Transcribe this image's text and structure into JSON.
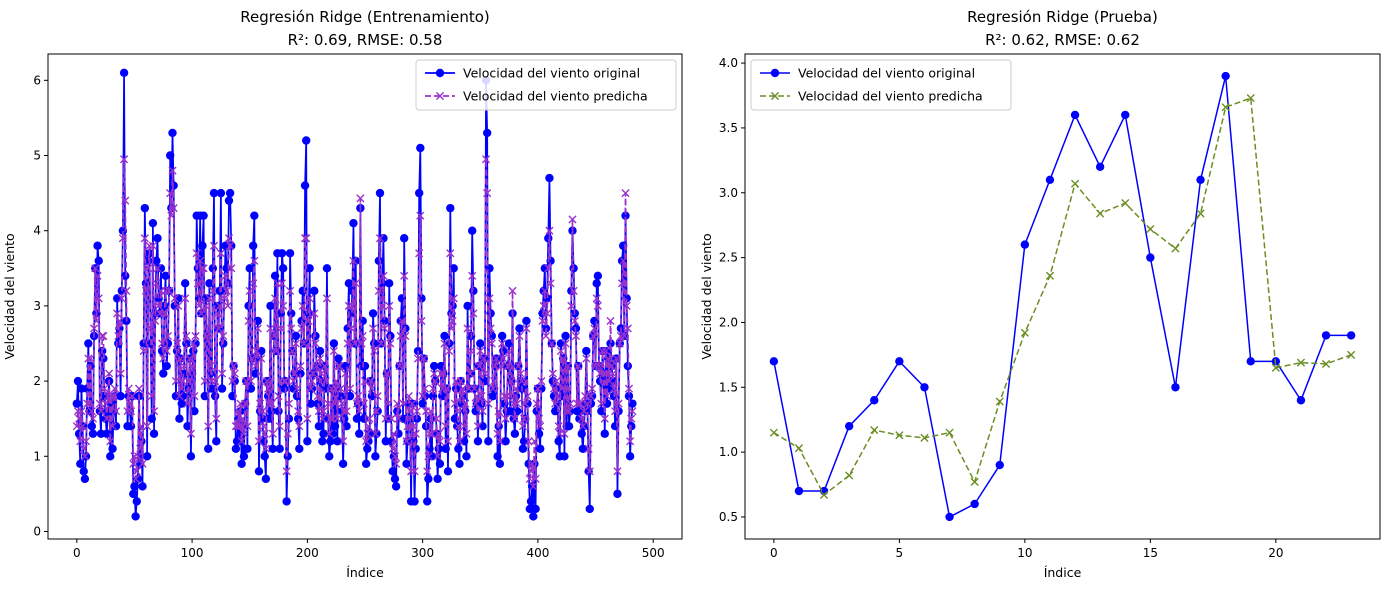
{
  "chart_data": [
    {
      "type": "line",
      "title": "Regresión Ridge (Entrenamiento)",
      "subtitle": "R²: 0.69, RMSE: 0.58",
      "xlabel": "Índice",
      "ylabel": "Velocidad del viento",
      "xlim": [
        -25,
        525
      ],
      "ylim": [
        -0.1,
        6.35
      ],
      "xticks": [
        0,
        100,
        200,
        300,
        400,
        500
      ],
      "yticks": [
        0,
        1,
        2,
        3,
        4,
        5,
        6
      ],
      "grid": false,
      "legend_position": "upper right",
      "series": [
        {
          "name": "Velocidad del viento original",
          "color": "#0000ff",
          "linestyle": "solid",
          "marker": "circle",
          "x_start": 0,
          "values": [
            1.7,
            2.0,
            1.3,
            0.9,
            1.9,
            1.4,
            0.8,
            0.7,
            1.0,
            1.9,
            2.5,
            1.6,
            2.2,
            1.4,
            1.3,
            2.6,
            3.5,
            2.9,
            3.8,
            3.6,
            1.6,
            1.3,
            2.4,
            2.3,
            1.8,
            1.5,
            1.3,
            1.6,
            2.0,
            1.0,
            1.7,
            1.1,
            1.6,
            1.8,
            1.4,
            3.1,
            2.5,
            2.7,
            1.8,
            3.2,
            4.0,
            6.1,
            3.4,
            2.8,
            1.4,
            1.8,
            1.6,
            1.4,
            1.8,
            0.5,
            0.6,
            0.2,
            0.4,
            0.7,
            1.8,
            0.9,
            1.2,
            0.6,
            2.5,
            4.3,
            3.3,
            1.0,
            3.6,
            3.7,
            2.5,
            1.5,
            4.1,
            1.3,
            2.9,
            3.6,
            3.9,
            3.1,
            2.9,
            3.5,
            2.4,
            2.1,
            3.0,
            3.4,
            2.2,
            2.5,
            3.2,
            5.0,
            4.3,
            5.3,
            4.6,
            3.0,
            1.8,
            2.4,
            3.1,
            1.5,
            2.3,
            1.7,
            1.8,
            2.1,
            3.3,
            2.5,
            1.4,
            1.9,
            2.3,
            1.0,
            2.1,
            2.4,
            1.6,
            2.5,
            4.2,
            3.5,
            3.1,
            4.2,
            2.9,
            3.8,
            4.2,
            1.8,
            3.1,
            2.6,
            1.1,
            3.3,
            2.1,
            1.9,
            3.5,
            4.5,
            1.8,
            1.2,
            3.0,
            2.7,
            3.2,
            4.5,
            1.9,
            2.5,
            3.2,
            3.8,
            3.5,
            3.3,
            4.4,
            4.5,
            3.8,
            1.8,
            2.2,
            2.0,
            1.1,
            1.2,
            1.5,
            1.2,
            1.6,
            0.9,
            1.4,
            1.0,
            1.7,
            2.0,
            1.1,
            3.0,
            3.5,
            1.9,
            2.3,
            3.8,
            4.2,
            2.1,
            2.3,
            2.8,
            0.8,
            1.6,
            2.4,
            1.5,
            1.2,
            1.0,
            0.7,
            2.0,
            1.8,
            1.5,
            3.0,
            1.6,
            1.1,
            2.6,
            3.4,
            2.4,
            3.7,
            1.6,
            1.1,
            2.9,
            3.7,
            3.5,
            1.9,
            2.0,
            0.4,
            1.0,
            1.5,
            3.7,
            2.9,
            2.4,
            1.9,
            2.1,
            2.6,
            1.8,
            1.5,
            1.1,
            2.1,
            2.8,
            3.2,
            2.5,
            4.6,
            5.2,
            1.2,
            2.9,
            3.5,
            1.7,
            1.9,
            2.1,
            3.2,
            2.6,
            2.2,
            1.7,
            1.4,
            2.4,
            2.0,
            1.2,
            1.3,
            2.2,
            1.9,
            3.5,
            1.5,
            1.0,
            1.2,
            1.9,
            1.3,
            2.5,
            1.4,
            1.9,
            1.2,
            2.3,
            2.2,
            1.8,
            1.6,
            0.9,
            1.5,
            2.2,
            1.4,
            2.7,
            3.3,
            1.8,
            2.9,
            3.2,
            4.1,
            2.5,
            3.6,
            1.5,
            1.7,
            1.3,
            4.3,
            2.2,
            2.8,
            1.5,
            2.2,
            0.9,
            1.1,
            1.2,
            1.3,
            2.0,
            1.8,
            2.9,
            2.5,
            1.0,
            1.3,
            1.6,
            3.6,
            4.5,
            2.5,
            3.3,
            3.9,
            2.8,
            1.2,
            2.1,
            1.5,
            3.3,
            2.6,
            1.2,
            0.8,
            1.0,
            0.7,
            0.6,
            1.6,
            1.3,
            2.2,
            2.8,
            3.1,
            1.5,
            3.9,
            2.7,
            0.9,
            1.2,
            1.7,
            1.5,
            0.4,
            1.7,
            1.2,
            0.4,
            1.1,
            1.5,
            2.4,
            4.5,
            5.1,
            3.1,
            1.7,
            2.3,
            1.8,
            1.4,
            0.4,
            0.7,
            1.1,
            1.5,
            1.0,
            1.8,
            2.2,
            2.0,
            1.3,
            0.7,
            1.1,
            0.9,
            2.2,
            1.8,
            2.1,
            2.6,
            1.1,
            1.9,
            0.8,
            2.5,
            4.3,
            2.9,
            3.0,
            3.5,
            1.5,
            1.9,
            1.4,
            1.1,
            0.9,
            2.0,
            1.7,
            1.8,
            1.2,
            1.6,
            1.0,
            3.0,
            1.9,
            2.1,
            2.6,
            4.0,
            3.2,
            1.9,
            1.6,
            1.7,
            1.2,
            2.2,
            2.5,
            1.7,
            1.4,
            2.3,
            2.0,
            6.0,
            5.3,
            1.2,
            3.5,
            2.9,
            2.6,
            1.8,
            1.9,
            2.2,
            2.3,
            1.0,
            1.4,
            0.9,
            2.3,
            2.6,
            2.4,
            1.7,
            1.2,
            1.6,
            2.2,
            2.5,
            1.6,
            2.0,
            2.9,
            1.5,
            1.3,
            1.8,
            1.6,
            2.2,
            2.7,
            2.0,
            1.9,
            1.1,
            1.2,
            1.5,
            2.8,
            1.7,
            0.9,
            0.3,
            0.4,
            0.6,
            0.2,
            0.9,
            0.3,
            1.6,
            1.9,
            1.3,
            1.1,
            1.9,
            2.9,
            3.2,
            3.5,
            2.7,
            3.1,
            3.9,
            4.7,
            3.6,
            2.5,
            2.0,
            1.8,
            1.6,
            1.9,
            1.7,
            1.2,
            1.0,
            2.5,
            1.8,
            2.3,
            1.0,
            2.6,
            1.4,
            2.2,
            1.4,
            1.6,
            3.2,
            4.0,
            3.5,
            2.9,
            2.7,
            1.6,
            2.2,
            1.5,
            1.6,
            1.3,
            1.1,
            1.4,
            1.7,
            2.4,
            1.6,
            0.8,
            0.3,
            1.7,
            1.8,
            2.6,
            2.8,
            2.2,
            3.3,
            3.4,
            2.2,
            2.0,
            1.6,
            2.4,
            2.1,
            1.3,
            2.4,
            1.7,
            2.3,
            1.9,
            2.5,
            2.2,
            2.0,
            1.8,
            1.4,
            2.3,
            0.5,
            1.6,
            2.5,
            2.7,
            3.6,
            3.8,
            2.6,
            4.2,
            3.1,
            2.2,
            1.8,
            1.0,
            1.4,
            1.7
          ]
        },
        {
          "name": "Velocidad del viento predicha",
          "color": "#9932cc",
          "linestyle": "dashed",
          "marker": "x",
          "x_start": 0,
          "values": [
            1.4,
            1.6,
            1.5,
            1.2,
            1.6,
            1.4,
            1.1,
            1.0,
            1.2,
            1.7,
            2.3,
            1.7,
            2.3,
            1.6,
            1.5,
            2.7,
            3.5,
            2.8,
            3.4,
            3.1,
            1.7,
            1.6,
            2.6,
            2.6,
            1.9,
            1.7,
            1.5,
            1.8,
            2.1,
            1.2,
            1.8,
            1.4,
            1.8,
            1.9,
            1.6,
            2.9,
            2.6,
            2.8,
            2.1,
            3.1,
            3.9,
            4.95,
            4.4,
            3.2,
            1.6,
            1.9,
            1.7,
            1.6,
            1.8,
            0.9,
            1.0,
            0.7,
            0.8,
            1.0,
            1.9,
            1.1,
            1.4,
            0.9,
            2.4,
            3.9,
            3.2,
            1.4,
            3.5,
            3.8,
            2.7,
            1.8,
            3.8,
            1.6,
            2.8,
            3.3,
            3.5,
            3.0,
            2.9,
            3.2,
            2.5,
            2.3,
            2.9,
            3.2,
            2.4,
            2.6,
            3.2,
            4.5,
            4.2,
            4.8,
            4.3,
            3.1,
            2.0,
            2.5,
            3.0,
            1.8,
            2.3,
            1.9,
            2.0,
            2.2,
            3.1,
            2.6,
            1.7,
            2.0,
            2.3,
            1.3,
            2.2,
            2.5,
            1.8,
            2.6,
            3.7,
            3.3,
            3.0,
            3.6,
            2.9,
            3.5,
            3.5,
            2.0,
            3.0,
            2.6,
            1.4,
            3.1,
            2.2,
            2.0,
            3.2,
            3.8,
            2.0,
            1.5,
            2.9,
            2.7,
            3.0,
            3.7,
            2.1,
            2.6,
            3.1,
            3.4,
            3.2,
            3.0,
            3.9,
            3.8,
            3.5,
            2.0,
            2.2,
            2.1,
            1.4,
            1.4,
            1.6,
            1.4,
            1.7,
            1.2,
            1.5,
            1.3,
            1.7,
            2.0,
            1.4,
            2.8,
            3.2,
            2.0,
            2.3,
            3.3,
            3.6,
            2.2,
            2.4,
            2.7,
            1.2,
            1.7,
            2.3,
            1.6,
            1.4,
            1.3,
            1.1,
            2.0,
            1.9,
            1.7,
            2.7,
            1.7,
            1.3,
            2.6,
            3.1,
            2.4,
            3.3,
            1.8,
            1.4,
            2.7,
            3.3,
            3.0,
            2.0,
            2.0,
            0.8,
            1.3,
            1.7,
            3.2,
            2.7,
            2.4,
            2.0,
            2.1,
            2.5,
            1.9,
            1.6,
            1.4,
            2.2,
            2.7,
            3.0,
            2.5,
            3.9,
            3.9,
            1.5,
            2.8,
            3.1,
            1.9,
            2.0,
            2.1,
            2.9,
            2.5,
            2.2,
            1.8,
            1.6,
            2.3,
            2.1,
            1.5,
            1.6,
            2.2,
            2.0,
            3.1,
            1.7,
            1.3,
            1.5,
            1.9,
            1.5,
            2.4,
            1.7,
            2.0,
            1.5,
            2.2,
            2.2,
            1.9,
            1.7,
            1.2,
            1.6,
            2.1,
            1.6,
            2.5,
            3.0,
            1.9,
            2.7,
            3.0,
            3.6,
            2.5,
            3.3,
            1.7,
            1.8,
            1.6,
            4.43,
            2.5,
            2.6,
            1.7,
            2.0,
            1.2,
            1.3,
            1.4,
            1.5,
            2.0,
            1.9,
            2.7,
            2.4,
            1.3,
            1.6,
            1.8,
            3.2,
            3.9,
            2.5,
            3.0,
            3.4,
            2.7,
            1.5,
            2.1,
            1.7,
            3.0,
            2.5,
            1.5,
            1.1,
            1.3,
            1.0,
            0.9,
            1.7,
            1.5,
            2.2,
            2.6,
            2.8,
            1.7,
            3.4,
            2.6,
            1.2,
            1.4,
            1.8,
            1.6,
            0.8,
            1.7,
            1.4,
            0.8,
            1.3,
            1.6,
            2.3,
            3.7,
            4.2,
            2.8,
            1.8,
            2.3,
            1.9,
            1.6,
            0.8,
            1.0,
            1.3,
            1.6,
            1.3,
            1.9,
            2.1,
            2.0,
            1.5,
            1.0,
            1.3,
            1.2,
            2.1,
            1.9,
            2.1,
            2.5,
            1.4,
            1.9,
            1.2,
            2.4,
            3.7,
            2.7,
            2.8,
            3.1,
            1.7,
            2.0,
            1.6,
            1.4,
            1.2,
            2.0,
            1.8,
            1.9,
            1.4,
            1.7,
            1.3,
            2.7,
            1.9,
            2.1,
            2.4,
            3.4,
            2.9,
            1.9,
            1.7,
            1.8,
            1.4,
            2.2,
            2.4,
            1.8,
            1.6,
            2.3,
            2.1,
            4.95,
            4.5,
            1.7,
            3.1,
            2.7,
            2.5,
            1.9,
            2.0,
            2.2,
            2.3,
            1.3,
            1.6,
            1.2,
            2.2,
            2.5,
            2.3,
            1.8,
            1.5,
            1.8,
            2.2,
            2.4,
            1.8,
            2.0,
            3.2,
            1.7,
            1.5,
            1.9,
            1.7,
            2.2,
            2.6,
            2.1,
            2.0,
            1.4,
            1.5,
            1.7,
            2.7,
            1.8,
            1.2,
            0.7,
            0.8,
            0.9,
            0.6,
            1.2,
            0.7,
            1.7,
            1.9,
            1.5,
            1.4,
            2.0,
            2.8,
            3.0,
            3.2,
            2.6,
            2.9,
            3.5,
            4.0,
            3.3,
            2.5,
            2.1,
            1.9,
            1.7,
            2.0,
            1.8,
            1.4,
            1.3,
            2.4,
            1.9,
            2.3,
            1.3,
            2.5,
            1.6,
            2.2,
            1.6,
            1.7,
            3.0,
            4.15,
            3.2,
            2.8,
            2.6,
            1.7,
            2.2,
            1.7,
            1.7,
            1.5,
            1.4,
            1.6,
            1.8,
            2.3,
            1.7,
            1.1,
            0.8,
            1.8,
            1.9,
            2.6,
            2.7,
            2.2,
            3.1,
            3.0,
            2.2,
            2.1,
            1.7,
            2.4,
            2.1,
            1.5,
            2.4,
            1.8,
            2.3,
            2.0,
            2.8,
            2.2,
            2.1,
            1.9,
            1.6,
            2.3,
            0.8,
            1.7,
            2.5,
            2.6,
            3.3,
            3.6,
            2.6,
            4.5,
            3.0,
            2.7,
            1.9,
            1.2,
            1.5,
            1.6
          ]
        }
      ]
    },
    {
      "type": "line",
      "title": "Regresión Ridge (Prueba)",
      "subtitle": "R²: 0.62, RMSE: 0.62",
      "xlabel": "Índice",
      "ylabel": "Velocidad del viento",
      "xlim": [
        -1.15,
        24.15
      ],
      "ylim": [
        0.33,
        4.07
      ],
      "xticks": [
        0,
        5,
        10,
        15,
        20
      ],
      "yticks": [
        0.5,
        1.0,
        1.5,
        2.0,
        2.5,
        3.0,
        3.5,
        4.0
      ],
      "grid": false,
      "legend_position": "upper left",
      "series": [
        {
          "name": "Velocidad del viento original",
          "color": "#0000ff",
          "linestyle": "solid",
          "marker": "circle",
          "x_start": 0,
          "values": [
            1.7,
            0.7,
            0.7,
            1.2,
            1.4,
            1.7,
            1.5,
            0.5,
            0.6,
            0.9,
            2.6,
            3.1,
            3.6,
            3.2,
            3.6,
            2.5,
            1.5,
            3.1,
            3.9,
            1.7,
            1.7,
            1.4,
            1.9,
            1.9
          ]
        },
        {
          "name": "Velocidad del viento predicha",
          "color": "#6b8e23",
          "linestyle": "dashed",
          "marker": "x",
          "x_start": 0,
          "values": [
            1.15,
            1.03,
            0.67,
            0.82,
            1.17,
            1.13,
            1.11,
            1.15,
            0.77,
            1.39,
            1.92,
            2.36,
            3.07,
            2.84,
            2.92,
            2.72,
            2.57,
            2.84,
            3.66,
            3.73,
            1.65,
            1.69,
            1.68,
            1.75
          ]
        }
      ]
    }
  ]
}
